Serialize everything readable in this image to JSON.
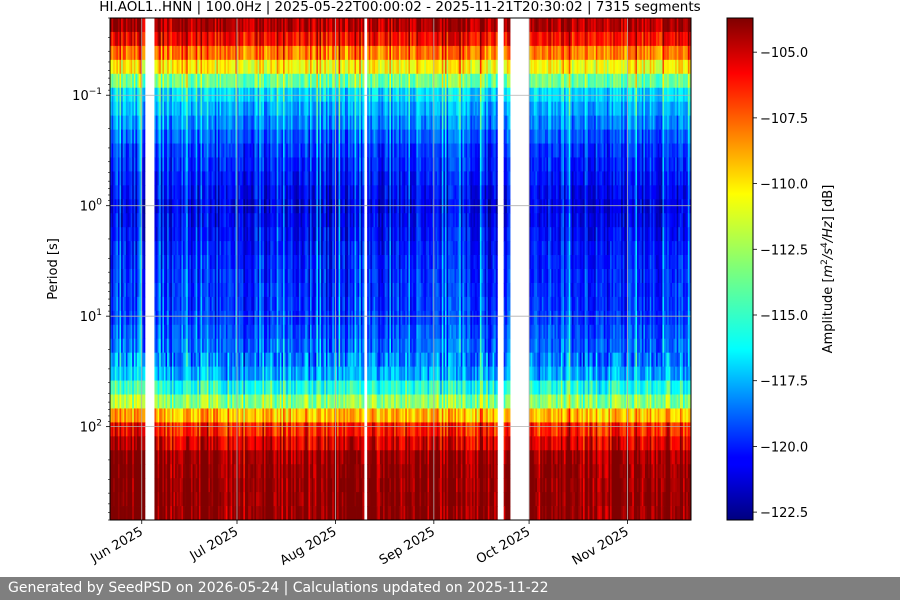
{
  "chart_data": {
    "type": "heatmap",
    "title": "HI.AOL1..HNN | 100.0Hz | 2025-05-22T00:00:02 - 2025-11-21T20:30:02 | 7315 segments",
    "xlabel": "",
    "ylabel": "Period [s]",
    "x_range": [
      "2025-05-22",
      "2025-11-21"
    ],
    "x_ticks": [
      {
        "date": "2025-06-01",
        "label": "Jun 2025"
      },
      {
        "date": "2025-07-01",
        "label": "Jul 2025"
      },
      {
        "date": "2025-08-01",
        "label": "Aug 2025"
      },
      {
        "date": "2025-09-01",
        "label": "Sep 2025"
      },
      {
        "date": "2025-10-01",
        "label": "Oct 2025"
      },
      {
        "date": "2025-11-01",
        "label": "Nov 2025"
      }
    ],
    "y_scale": "log",
    "y_range": [
      0.02,
      700
    ],
    "y_ticks": [
      {
        "value": 0.1,
        "base": "10",
        "exp": "−1"
      },
      {
        "value": 1,
        "base": "10",
        "exp": "0"
      },
      {
        "value": 10,
        "base": "10",
        "exp": "1"
      },
      {
        "value": 100,
        "base": "10",
        "exp": "2"
      }
    ],
    "grid": true,
    "colorbar": {
      "label": "Amplitude [m²/s⁴/Hz] [dB]",
      "label_parts": {
        "pre": "Amplitude [",
        "unit": "m",
        "e1": "2",
        "s1": "/s",
        "e2": "4",
        "s2": "/Hz",
        "post": "] [dB]"
      },
      "colormap": "jet",
      "range": [
        -122.8,
        -103.7
      ],
      "ticks": [
        -105.0,
        -107.5,
        -110.0,
        -112.5,
        -115.0,
        -117.5,
        -120.0,
        -122.5
      ],
      "tick_labels": [
        "−105.0",
        "−107.5",
        "−110.0",
        "−112.5",
        "−115.0",
        "−117.5",
        "−120.0",
        "−122.5"
      ]
    },
    "data_gaps": [
      [
        "2025-06-02",
        "2025-06-05"
      ],
      [
        "2025-08-10",
        "2025-08-11"
      ],
      [
        "2025-09-21",
        "2025-09-23"
      ],
      [
        "2025-09-25",
        "2025-10-01"
      ]
    ],
    "amplitude_profile_db": [
      {
        "period": 0.02,
        "db": -104.0
      },
      {
        "period": 0.03,
        "db": -106.0
      },
      {
        "period": 0.05,
        "db": -110.0
      },
      {
        "period": 0.1,
        "db": -116.5
      },
      {
        "period": 0.3,
        "db": -119.5
      },
      {
        "period": 1,
        "db": -121.0
      },
      {
        "period": 3,
        "db": -120.0
      },
      {
        "period": 10,
        "db": -119.5
      },
      {
        "period": 30,
        "db": -118.0
      },
      {
        "period": 60,
        "db": -113.0
      },
      {
        "period": 100,
        "db": -107.0
      },
      {
        "period": 200,
        "db": -104.0
      },
      {
        "period": 700,
        "db": -103.8
      }
    ]
  },
  "footer": {
    "text": "Generated by SeedPSD on 2026-05-24 | Calculations updated on 2025-11-22"
  }
}
